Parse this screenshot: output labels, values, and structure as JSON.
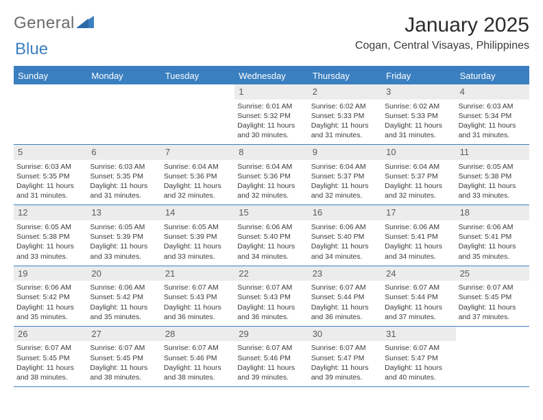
{
  "brand": {
    "line1": "General",
    "line2": "Blue"
  },
  "title": "January 2025",
  "location": "Cogan, Central Visayas, Philippines",
  "colors": {
    "accent": "#3a7fc0",
    "daynum_bg": "#ececec",
    "text": "#3a3a3a",
    "bg": "#ffffff"
  },
  "calendar": {
    "day_names": [
      "Sunday",
      "Monday",
      "Tuesday",
      "Wednesday",
      "Thursday",
      "Friday",
      "Saturday"
    ],
    "first_weekday_index": 3,
    "days": [
      {
        "n": 1,
        "sunrise": "6:01 AM",
        "sunset": "5:32 PM",
        "daylight": "11 hours and 30 minutes."
      },
      {
        "n": 2,
        "sunrise": "6:02 AM",
        "sunset": "5:33 PM",
        "daylight": "11 hours and 31 minutes."
      },
      {
        "n": 3,
        "sunrise": "6:02 AM",
        "sunset": "5:33 PM",
        "daylight": "11 hours and 31 minutes."
      },
      {
        "n": 4,
        "sunrise": "6:03 AM",
        "sunset": "5:34 PM",
        "daylight": "11 hours and 31 minutes."
      },
      {
        "n": 5,
        "sunrise": "6:03 AM",
        "sunset": "5:35 PM",
        "daylight": "11 hours and 31 minutes."
      },
      {
        "n": 6,
        "sunrise": "6:03 AM",
        "sunset": "5:35 PM",
        "daylight": "11 hours and 31 minutes."
      },
      {
        "n": 7,
        "sunrise": "6:04 AM",
        "sunset": "5:36 PM",
        "daylight": "11 hours and 32 minutes."
      },
      {
        "n": 8,
        "sunrise": "6:04 AM",
        "sunset": "5:36 PM",
        "daylight": "11 hours and 32 minutes."
      },
      {
        "n": 9,
        "sunrise": "6:04 AM",
        "sunset": "5:37 PM",
        "daylight": "11 hours and 32 minutes."
      },
      {
        "n": 10,
        "sunrise": "6:04 AM",
        "sunset": "5:37 PM",
        "daylight": "11 hours and 32 minutes."
      },
      {
        "n": 11,
        "sunrise": "6:05 AM",
        "sunset": "5:38 PM",
        "daylight": "11 hours and 33 minutes."
      },
      {
        "n": 12,
        "sunrise": "6:05 AM",
        "sunset": "5:38 PM",
        "daylight": "11 hours and 33 minutes."
      },
      {
        "n": 13,
        "sunrise": "6:05 AM",
        "sunset": "5:39 PM",
        "daylight": "11 hours and 33 minutes."
      },
      {
        "n": 14,
        "sunrise": "6:05 AM",
        "sunset": "5:39 PM",
        "daylight": "11 hours and 33 minutes."
      },
      {
        "n": 15,
        "sunrise": "6:06 AM",
        "sunset": "5:40 PM",
        "daylight": "11 hours and 34 minutes."
      },
      {
        "n": 16,
        "sunrise": "6:06 AM",
        "sunset": "5:40 PM",
        "daylight": "11 hours and 34 minutes."
      },
      {
        "n": 17,
        "sunrise": "6:06 AM",
        "sunset": "5:41 PM",
        "daylight": "11 hours and 34 minutes."
      },
      {
        "n": 18,
        "sunrise": "6:06 AM",
        "sunset": "5:41 PM",
        "daylight": "11 hours and 35 minutes."
      },
      {
        "n": 19,
        "sunrise": "6:06 AM",
        "sunset": "5:42 PM",
        "daylight": "11 hours and 35 minutes."
      },
      {
        "n": 20,
        "sunrise": "6:06 AM",
        "sunset": "5:42 PM",
        "daylight": "11 hours and 35 minutes."
      },
      {
        "n": 21,
        "sunrise": "6:07 AM",
        "sunset": "5:43 PM",
        "daylight": "11 hours and 36 minutes."
      },
      {
        "n": 22,
        "sunrise": "6:07 AM",
        "sunset": "5:43 PM",
        "daylight": "11 hours and 36 minutes."
      },
      {
        "n": 23,
        "sunrise": "6:07 AM",
        "sunset": "5:44 PM",
        "daylight": "11 hours and 36 minutes."
      },
      {
        "n": 24,
        "sunrise": "6:07 AM",
        "sunset": "5:44 PM",
        "daylight": "11 hours and 37 minutes."
      },
      {
        "n": 25,
        "sunrise": "6:07 AM",
        "sunset": "5:45 PM",
        "daylight": "11 hours and 37 minutes."
      },
      {
        "n": 26,
        "sunrise": "6:07 AM",
        "sunset": "5:45 PM",
        "daylight": "11 hours and 38 minutes."
      },
      {
        "n": 27,
        "sunrise": "6:07 AM",
        "sunset": "5:45 PM",
        "daylight": "11 hours and 38 minutes."
      },
      {
        "n": 28,
        "sunrise": "6:07 AM",
        "sunset": "5:46 PM",
        "daylight": "11 hours and 38 minutes."
      },
      {
        "n": 29,
        "sunrise": "6:07 AM",
        "sunset": "5:46 PM",
        "daylight": "11 hours and 39 minutes."
      },
      {
        "n": 30,
        "sunrise": "6:07 AM",
        "sunset": "5:47 PM",
        "daylight": "11 hours and 39 minutes."
      },
      {
        "n": 31,
        "sunrise": "6:07 AM",
        "sunset": "5:47 PM",
        "daylight": "11 hours and 40 minutes."
      }
    ],
    "labels": {
      "sunrise": "Sunrise:",
      "sunset": "Sunset:",
      "daylight": "Daylight:"
    }
  }
}
